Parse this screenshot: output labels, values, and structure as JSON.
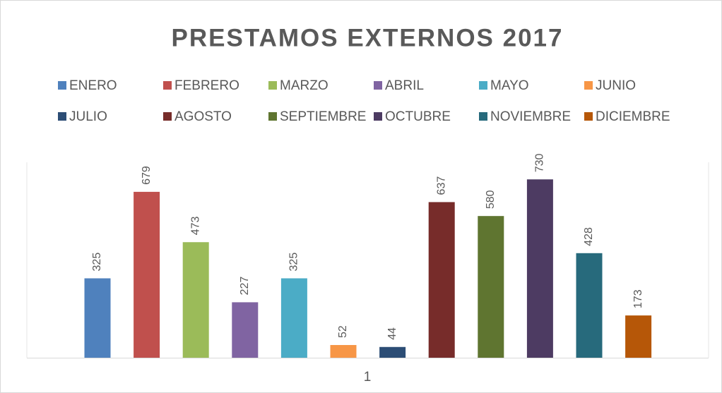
{
  "chart_data": {
    "type": "bar",
    "title": "PRESTAMOS EXTERNOS 2017",
    "categories": [
      "1"
    ],
    "ylim": [
      0,
      800
    ],
    "series": [
      {
        "name": "ENERO",
        "color": "#4F81BD",
        "values": [
          325
        ]
      },
      {
        "name": "FEBRERO",
        "color": "#C0504D",
        "values": [
          679
        ]
      },
      {
        "name": "MARZO",
        "color": "#9BBB59",
        "values": [
          473
        ]
      },
      {
        "name": "ABRIL",
        "color": "#8064A2",
        "values": [
          227
        ]
      },
      {
        "name": "MAYO",
        "color": "#4BACC6",
        "values": [
          325
        ]
      },
      {
        "name": "JUNIO",
        "color": "#F79646",
        "values": [
          52
        ]
      },
      {
        "name": "JULIO",
        "color": "#2C4D75",
        "values": [
          44
        ]
      },
      {
        "name": "AGOSTO",
        "color": "#772C2A",
        "values": [
          637
        ]
      },
      {
        "name": "SEPTIEMBRE",
        "color": "#5F7530",
        "values": [
          580
        ]
      },
      {
        "name": "OCTUBRE",
        "color": "#4D3B62",
        "values": [
          730
        ]
      },
      {
        "name": "NOVIEMBRE",
        "color": "#276A7C",
        "values": [
          428
        ]
      },
      {
        "name": "DICIEMBRE",
        "color": "#B65708",
        "values": [
          173
        ]
      }
    ]
  }
}
